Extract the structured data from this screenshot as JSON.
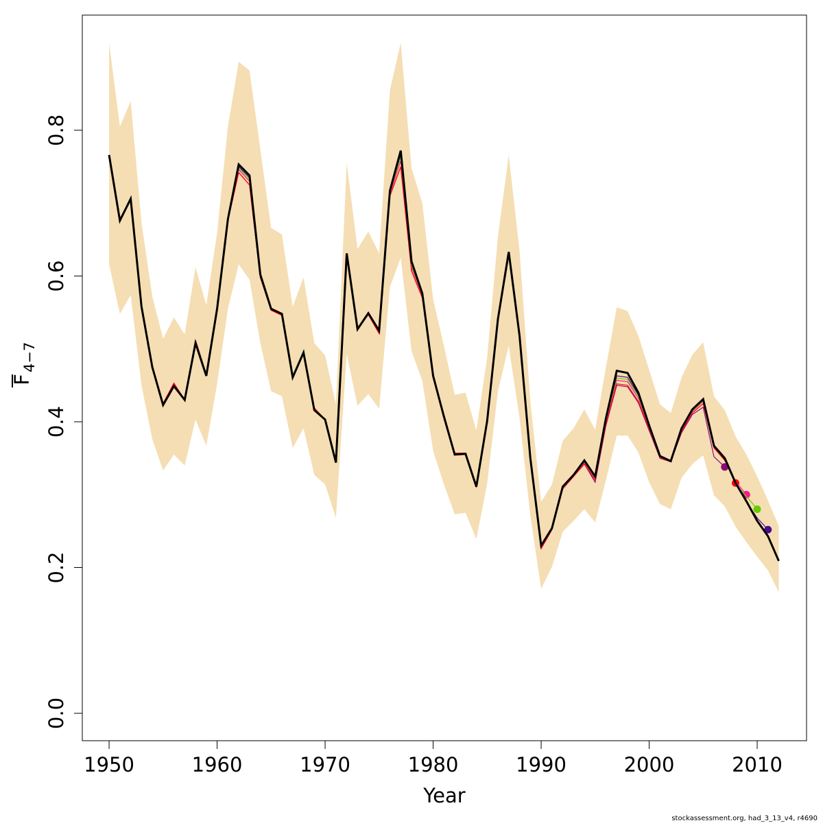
{
  "chart_data": {
    "type": "line",
    "xlabel": "Year",
    "ylabel": "F",
    "ylabel_sub": "4−7",
    "footnote": "stockassessment.org, had_3_13_v4, r4690",
    "x": [
      1950,
      1951,
      1952,
      1953,
      1954,
      1955,
      1956,
      1957,
      1958,
      1959,
      1960,
      1961,
      1962,
      1963,
      1964,
      1965,
      1966,
      1967,
      1968,
      1969,
      1970,
      1971,
      1972,
      1973,
      1974,
      1975,
      1976,
      1977,
      1978,
      1979,
      1980,
      1981,
      1982,
      1983,
      1984,
      1985,
      1986,
      1987,
      1988,
      1989,
      1990,
      1991,
      1992,
      1993,
      1994,
      1995,
      1996,
      1997,
      1998,
      1999,
      2000,
      2001,
      2002,
      2003,
      2004,
      2005,
      2006,
      2007,
      2008,
      2009,
      2010,
      2011,
      2012
    ],
    "band": {
      "color": "#f5deb3",
      "upper": [
        0.92,
        0.805,
        0.84,
        0.673,
        0.572,
        0.514,
        0.543,
        0.52,
        0.612,
        0.56,
        0.659,
        0.805,
        0.894,
        0.882,
        0.774,
        0.666,
        0.657,
        0.558,
        0.598,
        0.508,
        0.491,
        0.424,
        0.755,
        0.637,
        0.661,
        0.631,
        0.855,
        0.92,
        0.748,
        0.7,
        0.568,
        0.504,
        0.437,
        0.44,
        0.388,
        0.488,
        0.654,
        0.766,
        0.634,
        0.428,
        0.29,
        0.314,
        0.374,
        0.391,
        0.417,
        0.389,
        0.475,
        0.557,
        0.552,
        0.518,
        0.471,
        0.424,
        0.412,
        0.461,
        0.492,
        0.509,
        0.435,
        0.416,
        0.38,
        0.355,
        0.325,
        0.292,
        0.257
      ],
      "lower": [
        0.616,
        0.548,
        0.574,
        0.45,
        0.376,
        0.333,
        0.355,
        0.34,
        0.403,
        0.367,
        0.452,
        0.555,
        0.616,
        0.595,
        0.508,
        0.442,
        0.435,
        0.364,
        0.391,
        0.327,
        0.314,
        0.268,
        0.493,
        0.422,
        0.438,
        0.418,
        0.585,
        0.625,
        0.497,
        0.456,
        0.36,
        0.314,
        0.273,
        0.275,
        0.239,
        0.315,
        0.442,
        0.504,
        0.405,
        0.271,
        0.171,
        0.201,
        0.249,
        0.264,
        0.28,
        0.262,
        0.32,
        0.381,
        0.381,
        0.358,
        0.317,
        0.287,
        0.28,
        0.323,
        0.342,
        0.354,
        0.299,
        0.284,
        0.256,
        0.235,
        0.215,
        0.196,
        0.166
      ]
    },
    "series": [
      {
        "color": "#8b0a7a",
        "values": [
          0.766,
          0.678,
          0.706,
          0.556,
          0.473,
          0.425,
          0.453,
          0.43,
          0.512,
          0.465,
          0.555,
          0.676,
          0.742,
          0.725,
          0.598,
          0.553,
          0.546,
          0.461,
          0.493,
          0.419,
          0.403,
          0.344,
          0.629,
          0.527,
          0.547,
          0.521,
          0.71,
          0.75,
          0.607,
          0.57,
          0.463,
          0.41,
          0.357,
          0.357,
          0.31,
          0.399,
          0.538,
          0.628,
          0.514,
          0.349,
          0.226,
          0.252,
          0.308,
          0.325,
          0.342,
          0.317,
          0.395,
          0.45,
          0.448,
          0.426,
          0.388,
          0.35,
          0.345,
          0.385,
          0.41,
          0.42,
          0.352,
          0.338,
          null,
          null,
          null,
          null,
          null
        ]
      },
      {
        "color": "#ff0000",
        "values": [
          0.766,
          0.678,
          0.706,
          0.556,
          0.473,
          0.425,
          0.453,
          0.43,
          0.512,
          0.465,
          0.555,
          0.676,
          0.742,
          0.725,
          0.598,
          0.553,
          0.546,
          0.461,
          0.493,
          0.419,
          0.403,
          0.344,
          0.629,
          0.527,
          0.547,
          0.521,
          0.71,
          0.75,
          0.607,
          0.57,
          0.463,
          0.41,
          0.357,
          0.357,
          0.31,
          0.399,
          0.538,
          0.628,
          0.514,
          0.349,
          0.226,
          0.252,
          0.308,
          0.325,
          0.342,
          0.32,
          0.397,
          0.452,
          0.45,
          0.428,
          0.39,
          0.351,
          0.345,
          0.387,
          0.412,
          0.425,
          0.364,
          0.347,
          0.316,
          null,
          null,
          null,
          null
        ]
      },
      {
        "color": "#ff1493",
        "values": [
          0.766,
          0.677,
          0.706,
          0.557,
          0.474,
          0.424,
          0.451,
          0.43,
          0.51,
          0.464,
          0.555,
          0.677,
          0.746,
          0.73,
          0.6,
          0.554,
          0.547,
          0.461,
          0.494,
          0.418,
          0.403,
          0.344,
          0.63,
          0.527,
          0.548,
          0.523,
          0.713,
          0.758,
          0.612,
          0.573,
          0.463,
          0.408,
          0.356,
          0.356,
          0.31,
          0.4,
          0.54,
          0.63,
          0.516,
          0.35,
          0.228,
          0.253,
          0.309,
          0.326,
          0.344,
          0.322,
          0.4,
          0.457,
          0.455,
          0.432,
          0.392,
          0.352,
          0.346,
          0.389,
          0.414,
          0.428,
          0.366,
          0.349,
          0.318,
          0.3,
          null,
          null,
          null
        ]
      },
      {
        "color": "#66cc00",
        "values": [
          0.766,
          0.677,
          0.706,
          0.557,
          0.474,
          0.424,
          0.45,
          0.43,
          0.509,
          0.463,
          0.555,
          0.677,
          0.748,
          0.733,
          0.601,
          0.555,
          0.547,
          0.461,
          0.494,
          0.417,
          0.403,
          0.344,
          0.63,
          0.527,
          0.548,
          0.524,
          0.715,
          0.763,
          0.615,
          0.574,
          0.463,
          0.408,
          0.356,
          0.356,
          0.311,
          0.4,
          0.54,
          0.631,
          0.517,
          0.35,
          0.229,
          0.253,
          0.31,
          0.326,
          0.345,
          0.323,
          0.402,
          0.46,
          0.458,
          0.435,
          0.393,
          0.353,
          0.346,
          0.39,
          0.415,
          0.429,
          0.366,
          0.349,
          0.314,
          0.298,
          0.28,
          null,
          null
        ]
      },
      {
        "color": "#4b0c8c",
        "values": [
          0.766,
          0.676,
          0.706,
          0.558,
          0.475,
          0.423,
          0.449,
          0.43,
          0.508,
          0.463,
          0.555,
          0.678,
          0.75,
          0.735,
          0.602,
          0.555,
          0.548,
          0.461,
          0.495,
          0.416,
          0.403,
          0.344,
          0.631,
          0.527,
          0.549,
          0.525,
          0.716,
          0.767,
          0.618,
          0.575,
          0.463,
          0.407,
          0.355,
          0.356,
          0.311,
          0.401,
          0.541,
          0.632,
          0.518,
          0.35,
          0.23,
          0.254,
          0.311,
          0.327,
          0.346,
          0.324,
          0.404,
          0.463,
          0.461,
          0.437,
          0.394,
          0.353,
          0.346,
          0.391,
          0.416,
          0.43,
          0.367,
          0.35,
          0.316,
          0.29,
          0.268,
          0.252,
          null
        ]
      },
      {
        "color": "#000000",
        "values": [
          0.766,
          0.676,
          0.706,
          0.558,
          0.475,
          0.423,
          0.449,
          0.43,
          0.508,
          0.463,
          0.555,
          0.678,
          0.753,
          0.738,
          0.602,
          0.555,
          0.548,
          0.461,
          0.495,
          0.416,
          0.403,
          0.344,
          0.631,
          0.527,
          0.549,
          0.525,
          0.717,
          0.772,
          0.62,
          0.576,
          0.463,
          0.407,
          0.355,
          0.356,
          0.311,
          0.401,
          0.541,
          0.633,
          0.518,
          0.35,
          0.23,
          0.254,
          0.311,
          0.327,
          0.347,
          0.325,
          0.405,
          0.47,
          0.467,
          0.44,
          0.395,
          0.353,
          0.346,
          0.391,
          0.417,
          0.431,
          0.367,
          0.35,
          0.316,
          0.291,
          0.264,
          0.243,
          0.209
        ]
      }
    ],
    "xlim": [
      1947.52,
      2014.57
    ],
    "ylim": [
      -0.0376,
      0.958
    ],
    "xticks": [
      1950,
      1960,
      1970,
      1980,
      1990,
      2000,
      2010
    ],
    "yticks": [
      {
        "value": 0,
        "label": "0.0"
      },
      0.2,
      0.4,
      0.6,
      0.8
    ]
  }
}
